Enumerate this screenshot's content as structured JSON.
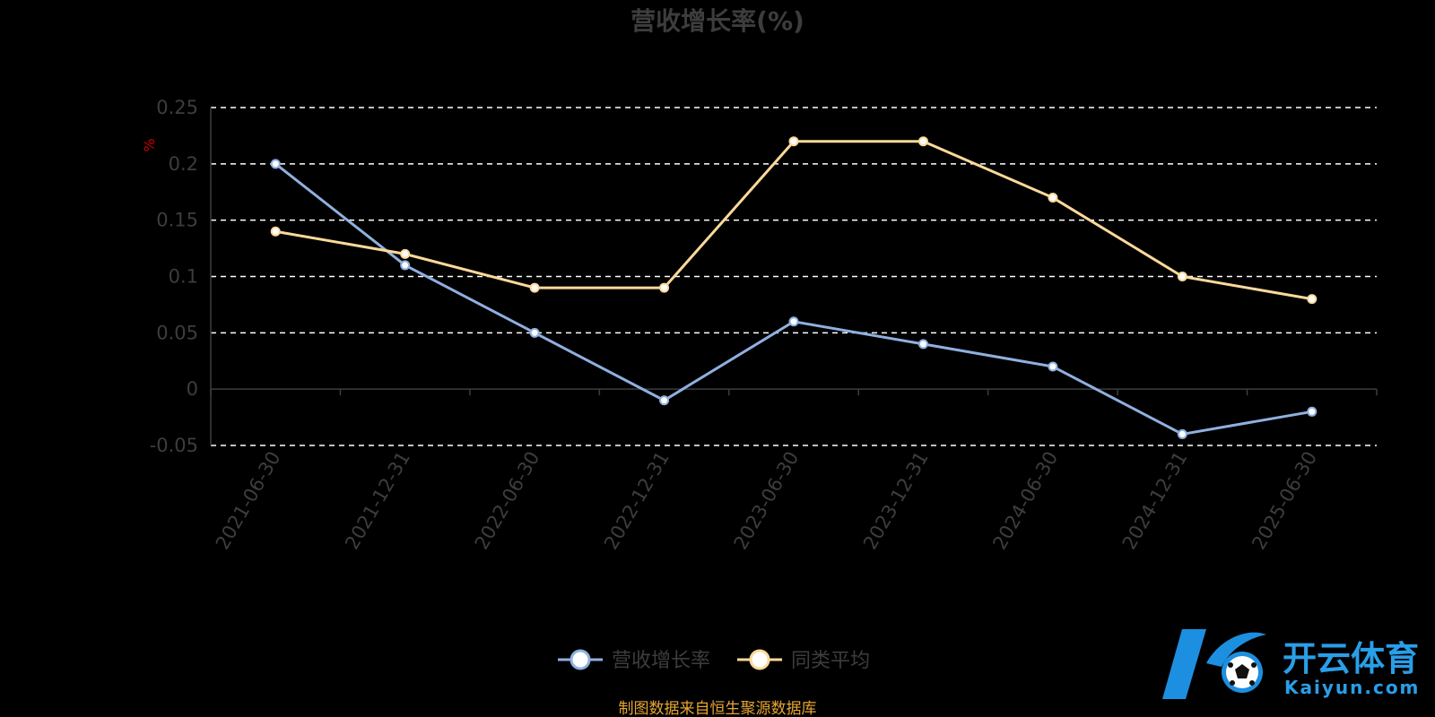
{
  "chart_data": {
    "type": "line",
    "title": "营收增长率(%)",
    "y_unit": "%",
    "categories": [
      "2021-06-30",
      "2021-12-31",
      "2022-06-30",
      "2022-12-31",
      "2023-06-30",
      "2023-12-31",
      "2024-06-30",
      "2024-12-31",
      "2025-06-30"
    ],
    "series": [
      {
        "name": "营收增长率",
        "color": "#8fb0e0",
        "values": [
          0.2,
          0.11,
          0.05,
          -0.01,
          0.06,
          0.04,
          0.02,
          -0.04,
          -0.02
        ]
      },
      {
        "name": "同类平均",
        "color": "#fcd99a",
        "values": [
          0.14,
          0.12,
          0.09,
          0.09,
          0.22,
          0.22,
          0.17,
          0.1,
          0.08
        ]
      }
    ],
    "ylim": [
      -0.05,
      0.25
    ],
    "yticks": [
      -0.05,
      0,
      0.05,
      0.1,
      0.15,
      0.2,
      0.25
    ],
    "ytick_labels": [
      "-0.05",
      "0",
      "0.05",
      "0.1",
      "0.15",
      "0.2",
      "0.25"
    ],
    "grid": true,
    "legend_position": "bottom-center"
  },
  "source_note": "制图数据来自恒生聚源数据库",
  "watermark": {
    "name": "开云体育",
    "domain": "Kaiyun.com"
  }
}
